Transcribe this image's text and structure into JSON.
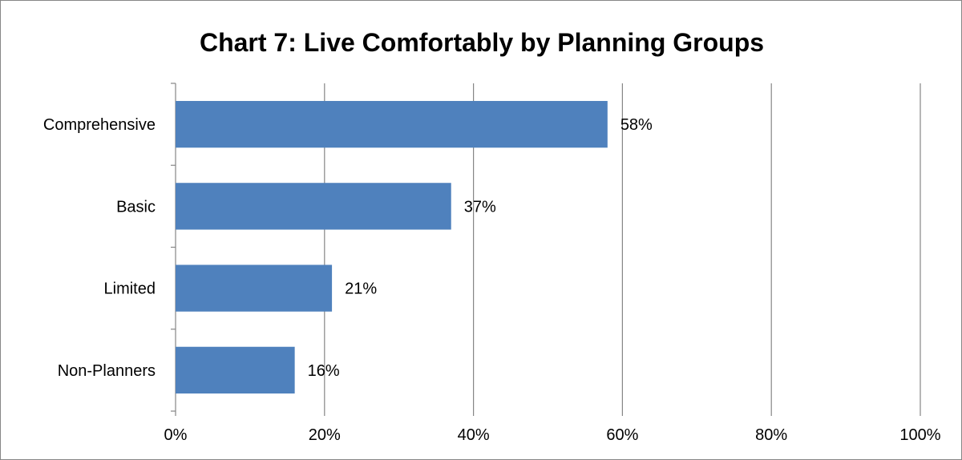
{
  "chart_data": {
    "type": "bar",
    "orientation": "horizontal",
    "title": "Chart 7: Live Comfortably by Planning Groups",
    "xlabel": "",
    "ylabel": "",
    "categories": [
      "Comprehensive",
      "Basic",
      "Limited",
      "Non-Planners"
    ],
    "values": [
      0.58,
      0.37,
      0.21,
      0.16
    ],
    "data_labels": [
      "58%",
      "37%",
      "21%",
      "16%"
    ],
    "xlim": [
      0,
      1
    ],
    "x_ticks": [
      0,
      0.2,
      0.4,
      0.6,
      0.8,
      1.0
    ],
    "x_tick_labels": [
      "0%",
      "20%",
      "40%",
      "60%",
      "80%",
      "100%"
    ],
    "grid": true,
    "legend": "none",
    "colors": {
      "bar": "#4F81BD",
      "grid": "#868686",
      "frame": "#868686"
    }
  }
}
